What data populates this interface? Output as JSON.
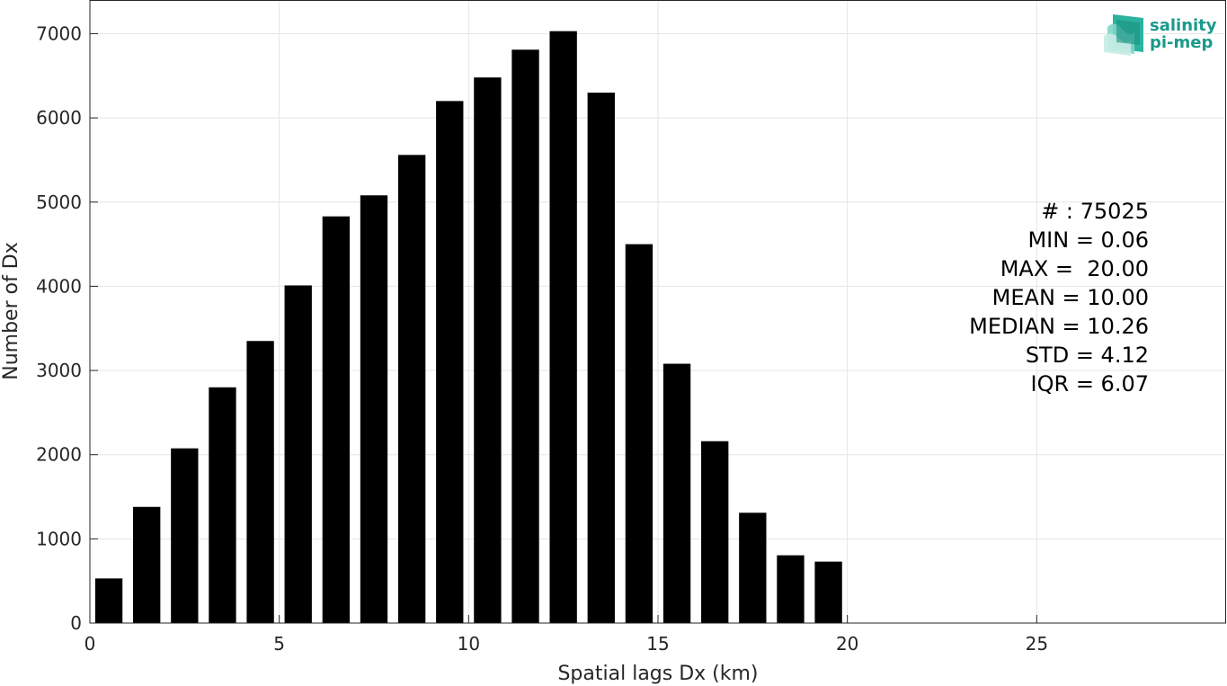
{
  "chart_data": {
    "type": "bar",
    "xlabel": "Spatial lags Dx (km)",
    "ylabel": "Number of Dx",
    "xlim": [
      0,
      30
    ],
    "ylim": [
      0,
      7400
    ],
    "xticks": [
      0,
      5,
      10,
      15,
      20,
      25
    ],
    "yticks": [
      0,
      1000,
      2000,
      3000,
      4000,
      5000,
      6000,
      7000
    ],
    "grid": true,
    "bar_width": 0.72,
    "bar_color": "#000000",
    "x": [
      0.5,
      1.5,
      2.5,
      3.5,
      4.5,
      5.5,
      6.5,
      7.5,
      8.5,
      9.5,
      10.5,
      11.5,
      12.5,
      13.5,
      14.5,
      15.5,
      16.5,
      17.5,
      18.5,
      19.5
    ],
    "values": [
      530,
      1380,
      2075,
      2800,
      3350,
      4010,
      4830,
      5080,
      5560,
      6200,
      6480,
      6810,
      7030,
      6300,
      4500,
      3080,
      2160,
      1310,
      805,
      730
    ]
  },
  "stats": {
    "lines": [
      "# : 75025",
      "MIN = 0.06",
      "MAX =  20.00",
      "MEAN = 10.00",
      "MEDIAN = 10.26",
      "STD = 4.12",
      "IQR = 6.07"
    ]
  },
  "logo": {
    "line1": "salinity",
    "line2": "pi-mep",
    "color": "#1a9a8a"
  }
}
